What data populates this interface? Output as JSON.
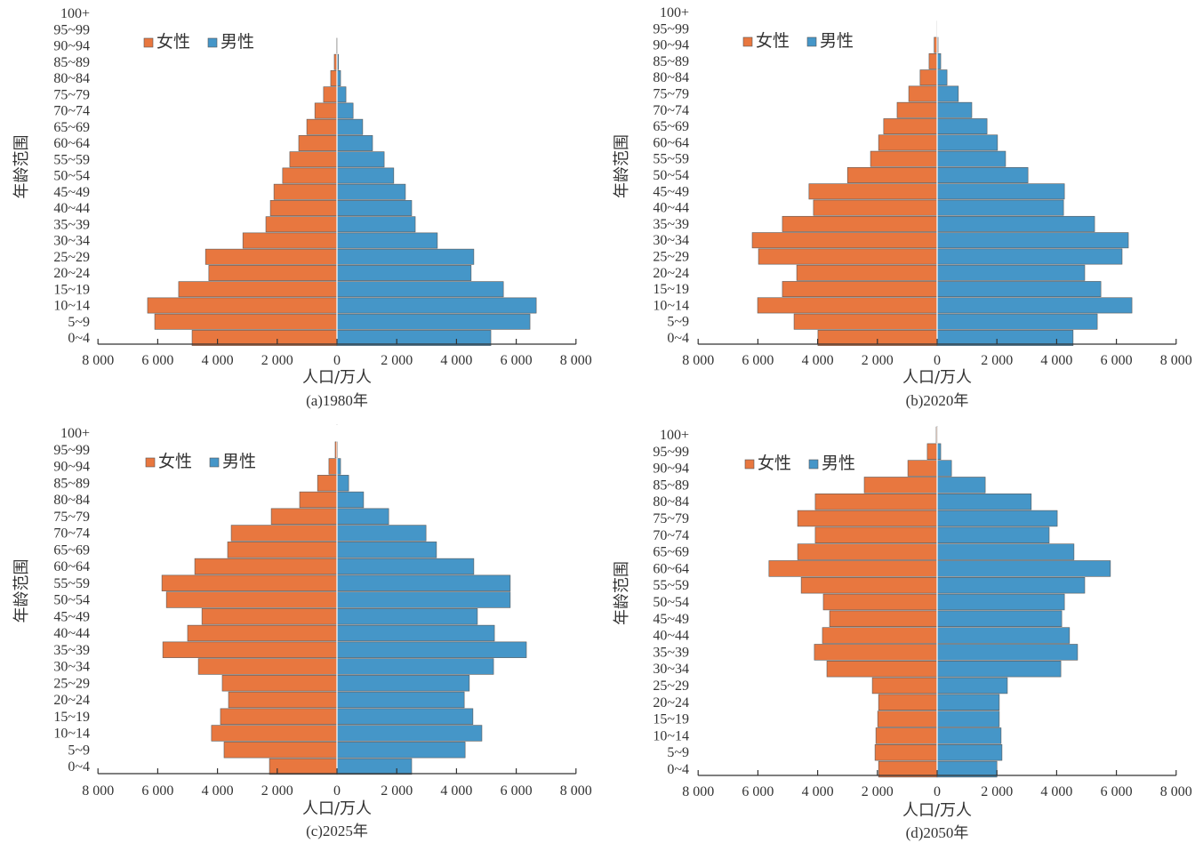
{
  "chart_data": [
    {
      "type": "bar",
      "orientation": "horizontal-pyramid",
      "caption": "(a)1980年",
      "xlabel": "人口/万人",
      "ylabel": "年龄范围",
      "xlim": [
        -8000,
        8000
      ],
      "xticks": [
        "8 000",
        "6 000",
        "4 000",
        "2 000",
        "0",
        "2 000",
        "4 000",
        "6 000",
        "8 000"
      ],
      "legend": "top-left",
      "categories": [
        "0~4",
        "5~9",
        "10~14",
        "15~19",
        "20~24",
        "25~29",
        "30~34",
        "35~39",
        "40~44",
        "45~49",
        "50~54",
        "55~59",
        "60~64",
        "65~69",
        "70~74",
        "75~79",
        "80~84",
        "85~89",
        "90~94",
        "95~99",
        "100+"
      ],
      "series": [
        {
          "name": "女性",
          "color": "#E8773F",
          "values": [
            4850,
            6100,
            6340,
            5300,
            4290,
            4400,
            3150,
            2380,
            2230,
            2110,
            1820,
            1580,
            1280,
            1010,
            740,
            450,
            210,
            90,
            20,
            5,
            0
          ]
        },
        {
          "name": "男性",
          "color": "#4596C8",
          "values": [
            5150,
            6460,
            6670,
            5570,
            4490,
            4580,
            3360,
            2620,
            2500,
            2290,
            1900,
            1580,
            1190,
            860,
            540,
            300,
            120,
            50,
            15,
            3,
            0
          ]
        }
      ]
    },
    {
      "type": "bar",
      "orientation": "horizontal-pyramid",
      "caption": "(b)2020年",
      "xlabel": "人口/万人",
      "ylabel": "年龄范围",
      "xlim": [
        -8000,
        8000
      ],
      "xticks": [
        "8 000",
        "6 000",
        "4 000",
        "2 000",
        "0",
        "2 000",
        "4 000",
        "6 000",
        "8 000"
      ],
      "legend": "top-left",
      "categories": [
        "0~4",
        "5~9",
        "10~14",
        "15~19",
        "20~24",
        "25~29",
        "30~34",
        "35~39",
        "40~44",
        "45~49",
        "50~54",
        "55~59",
        "60~64",
        "65~69",
        "70~74",
        "75~79",
        "80~84",
        "85~89",
        "90~94",
        "95~99",
        "100+"
      ],
      "series": [
        {
          "name": "女性",
          "color": "#E8773F",
          "values": [
            3990,
            4790,
            6010,
            5180,
            4700,
            5980,
            6190,
            5180,
            4140,
            4290,
            3000,
            2230,
            1960,
            1790,
            1340,
            950,
            570,
            270,
            100,
            10,
            0
          ]
        },
        {
          "name": "男性",
          "color": "#4596C8",
          "values": [
            4550,
            5360,
            6520,
            5480,
            4940,
            6190,
            6400,
            5270,
            4230,
            4260,
            3040,
            2290,
            2020,
            1670,
            1160,
            710,
            330,
            120,
            30,
            5,
            0
          ]
        }
      ]
    },
    {
      "type": "bar",
      "orientation": "horizontal-pyramid",
      "caption": "(c)2025年",
      "xlabel": "人口/万人",
      "ylabel": "年龄范围",
      "xlim": [
        -8000,
        8000
      ],
      "xticks": [
        "8 000",
        "6 000",
        "4 000",
        "2 000",
        "0",
        "2 000",
        "4 000",
        "6 000",
        "8 000"
      ],
      "legend": "top-left",
      "categories": [
        "0~4",
        "5~9",
        "10~14",
        "15~19",
        "20~24",
        "25~29",
        "30~34",
        "35~39",
        "40~44",
        "45~49",
        "50~54",
        "55~59",
        "60~64",
        "65~69",
        "70~74",
        "75~79",
        "80~84",
        "85~89",
        "90~94",
        "95~99",
        "100+"
      ],
      "series": [
        {
          "name": "女性",
          "color": "#E8773F",
          "values": [
            2260,
            3780,
            4200,
            3900,
            3630,
            3840,
            4640,
            5830,
            5000,
            4520,
            5710,
            5860,
            4760,
            3660,
            3540,
            2200,
            1250,
            650,
            270,
            60,
            5
          ]
        },
        {
          "name": "男性",
          "color": "#4596C8",
          "values": [
            2500,
            4290,
            4850,
            4550,
            4260,
            4430,
            5240,
            6340,
            5270,
            4700,
            5800,
            5800,
            4580,
            3330,
            2980,
            1730,
            890,
            390,
            120,
            20,
            2
          ]
        }
      ]
    },
    {
      "type": "bar",
      "orientation": "horizontal-pyramid",
      "caption": "(d)2050年",
      "xlabel": "人口/万人",
      "ylabel": "年龄范围",
      "xlim": [
        -8000,
        8000
      ],
      "xticks": [
        "8 000",
        "6 000",
        "4 000",
        "2 000",
        "0",
        "2 000",
        "4 000",
        "6 000",
        "8 000"
      ],
      "legend": "top-left",
      "categories": [
        "0~4",
        "5~9",
        "10~14",
        "15~19",
        "20~24",
        "25~29",
        "30~34",
        "35~39",
        "40~44",
        "45~49",
        "50~54",
        "55~59",
        "60~64",
        "65~69",
        "70~74",
        "75~79",
        "80~84",
        "85~89",
        "90~94",
        "95~99",
        "100+"
      ],
      "series": [
        {
          "name": "女性",
          "color": "#E8773F",
          "values": [
            1960,
            2080,
            2050,
            1990,
            1960,
            2170,
            3690,
            4110,
            3840,
            3600,
            3810,
            4550,
            5630,
            4670,
            4080,
            4670,
            4080,
            2440,
            980,
            330,
            30
          ]
        },
        {
          "name": "男性",
          "color": "#4596C8",
          "values": [
            2000,
            2170,
            2140,
            2080,
            2080,
            2350,
            4140,
            4700,
            4430,
            4170,
            4260,
            4940,
            5800,
            4580,
            3750,
            4020,
            3150,
            1610,
            480,
            120,
            10
          ]
        }
      ]
    }
  ]
}
